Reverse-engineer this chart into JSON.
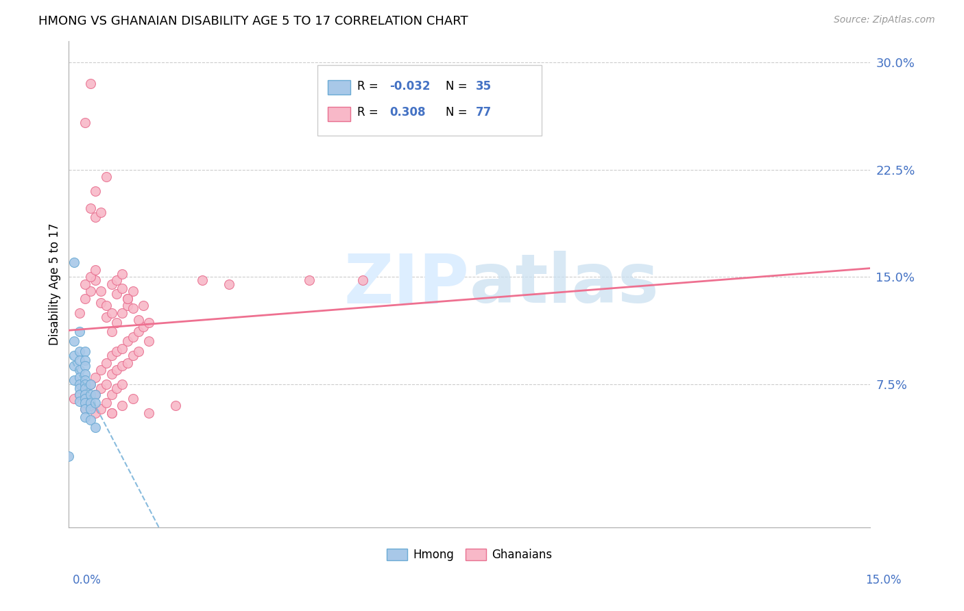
{
  "title": "HMONG VS GHANAIAN DISABILITY AGE 5 TO 17 CORRELATION CHART",
  "source": "Source: ZipAtlas.com",
  "ylabel": "Disability Age 5 to 17",
  "legend_label1": "Hmong",
  "legend_label2": "Ghanaians",
  "R1": -0.032,
  "N1": 35,
  "R2": 0.308,
  "N2": 77,
  "color_hmong_fill": "#a8c8e8",
  "color_hmong_edge": "#6aaad4",
  "color_ghanaian_fill": "#f8b8c8",
  "color_ghanaian_edge": "#e87090",
  "color_hmong_line": "#88bbdd",
  "color_ghanaian_line": "#ee7090",
  "color_text_blue": "#4472c4",
  "watermark_color": "#ddeeff",
  "xmin": 0.0,
  "xmax": 0.15,
  "ymin": -0.025,
  "ymax": 0.315,
  "yticks": [
    0.075,
    0.15,
    0.225,
    0.3
  ],
  "ytick_labels": [
    "7.5%",
    "15.0%",
    "22.5%",
    "30.0%"
  ],
  "hmong_x": [
    0.001,
    0.001,
    0.001,
    0.001,
    0.001,
    0.002,
    0.002,
    0.002,
    0.002,
    0.002,
    0.002,
    0.002,
    0.002,
    0.002,
    0.003,
    0.003,
    0.003,
    0.003,
    0.003,
    0.003,
    0.003,
    0.003,
    0.003,
    0.003,
    0.003,
    0.003,
    0.004,
    0.004,
    0.004,
    0.004,
    0.004,
    0.005,
    0.005,
    0.005,
    0.0
  ],
  "hmong_y": [
    0.16,
    0.105,
    0.095,
    0.088,
    0.078,
    0.112,
    0.098,
    0.092,
    0.085,
    0.08,
    0.075,
    0.072,
    0.068,
    0.063,
    0.098,
    0.092,
    0.088,
    0.082,
    0.078,
    0.075,
    0.072,
    0.068,
    0.065,
    0.062,
    0.058,
    0.052,
    0.075,
    0.068,
    0.062,
    0.058,
    0.05,
    0.068,
    0.062,
    0.045,
    0.025
  ],
  "ghanaian_x": [
    0.001,
    0.002,
    0.003,
    0.003,
    0.004,
    0.004,
    0.005,
    0.005,
    0.005,
    0.006,
    0.006,
    0.006,
    0.007,
    0.007,
    0.007,
    0.008,
    0.008,
    0.008,
    0.008,
    0.009,
    0.009,
    0.009,
    0.01,
    0.01,
    0.01,
    0.011,
    0.011,
    0.012,
    0.012,
    0.013,
    0.013,
    0.014,
    0.015,
    0.015,
    0.003,
    0.004,
    0.005,
    0.006,
    0.007,
    0.008,
    0.009,
    0.01,
    0.011,
    0.012,
    0.013,
    0.014,
    0.002,
    0.003,
    0.004,
    0.005,
    0.006,
    0.007,
    0.008,
    0.009,
    0.01,
    0.011,
    0.012,
    0.003,
    0.004,
    0.005,
    0.007,
    0.008,
    0.009,
    0.01,
    0.011,
    0.004,
    0.005,
    0.006,
    0.055,
    0.03,
    0.045,
    0.025,
    0.02,
    0.015,
    0.012,
    0.01,
    0.008
  ],
  "ghanaian_y": [
    0.065,
    0.068,
    0.072,
    0.058,
    0.075,
    0.06,
    0.08,
    0.068,
    0.055,
    0.085,
    0.072,
    0.058,
    0.09,
    0.075,
    0.062,
    0.095,
    0.082,
    0.068,
    0.055,
    0.098,
    0.085,
    0.072,
    0.1,
    0.088,
    0.075,
    0.105,
    0.09,
    0.108,
    0.095,
    0.112,
    0.098,
    0.115,
    0.118,
    0.105,
    0.135,
    0.14,
    0.148,
    0.132,
    0.122,
    0.112,
    0.118,
    0.125,
    0.13,
    0.128,
    0.12,
    0.13,
    0.125,
    0.145,
    0.15,
    0.155,
    0.14,
    0.13,
    0.125,
    0.138,
    0.142,
    0.135,
    0.14,
    0.258,
    0.198,
    0.192,
    0.22,
    0.145,
    0.148,
    0.152,
    0.135,
    0.285,
    0.21,
    0.195,
    0.148,
    0.145,
    0.148,
    0.148,
    0.06,
    0.055,
    0.065,
    0.06,
    0.055
  ]
}
